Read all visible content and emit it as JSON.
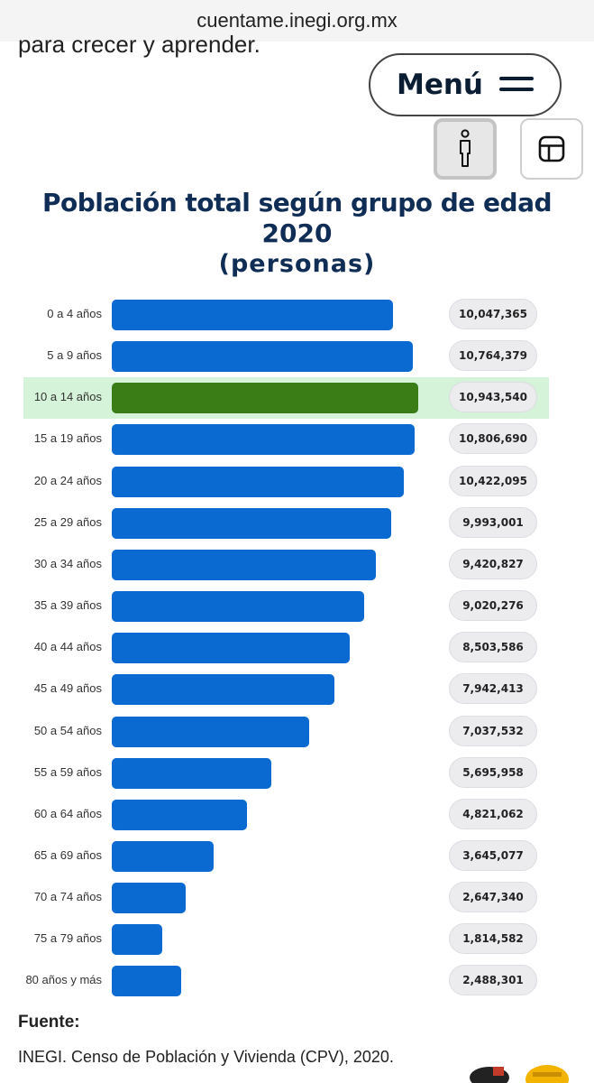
{
  "browser": {
    "url": "cuentame.inegi.org.mx"
  },
  "page": {
    "previous_text": "para crecer y aprender.",
    "menu_label": "Menú",
    "icons": {
      "menu": "hamburger-icon",
      "person": "person-icon",
      "table": "table-icon"
    }
  },
  "chart_data": {
    "type": "bar",
    "orientation": "horizontal",
    "title": "Población total según grupo de edad",
    "title_line2": "2020",
    "title_line3": "(personas)",
    "categories": [
      "0 a 4 años",
      "5 a 9 años",
      "10 a 14 años",
      "15 a 19 años",
      "20 a 24 años",
      "25 a 29 años",
      "30 a 34 años",
      "35 a 39 años",
      "40 a 44 años",
      "45 a 49 años",
      "50 a 54 años",
      "55 a 59 años",
      "60 a 64 años",
      "65 a 69 años",
      "70 a 74 años",
      "75 a 79 años",
      "80 años y más"
    ],
    "values": [
      10047365,
      10764379,
      10943540,
      10806690,
      10422095,
      9993001,
      9420827,
      9020276,
      8503586,
      7942413,
      7037532,
      5695958,
      4821062,
      3645077,
      2647340,
      1814582,
      2488301
    ],
    "value_labels": [
      "10,047,365",
      "10,764,379",
      "10,943,540",
      "10,806,690",
      "10,422,095",
      "9,993,001",
      "9,420,827",
      "9,020,276",
      "8,503,586",
      "7,942,413",
      "7,037,532",
      "5,695,958",
      "4,821,062",
      "3,645,077",
      "2,647,340",
      "1,814,582",
      "2,488,301"
    ],
    "highlighted_category": "10 a 14 años",
    "colors": {
      "bar": "#0a6ad2",
      "highlight_bar": "#3a7d17",
      "highlight_row": "#d5f3d9",
      "title": "#0f2d55"
    },
    "grid": false
  },
  "source": {
    "heading": "Fuente:",
    "text": "INEGI. Censo de Población y Vivienda (CPV), 2020."
  }
}
